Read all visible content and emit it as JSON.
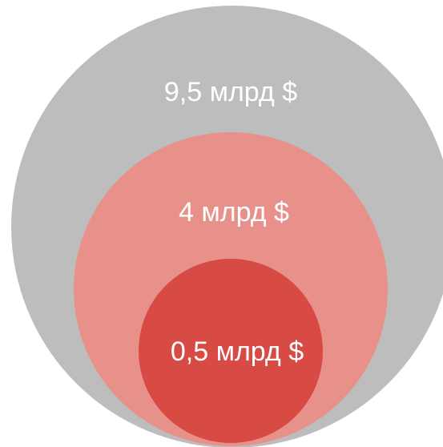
{
  "diagram": {
    "type": "nested-circles",
    "circles": [
      {
        "id": "outer",
        "label": "9,5 млрд $",
        "color": "#bdbdbd"
      },
      {
        "id": "middle",
        "label": "4 млрд $",
        "color": "#e8908a"
      },
      {
        "id": "inner",
        "label": "0,5 млрд $",
        "color": "#d84a44"
      }
    ]
  }
}
